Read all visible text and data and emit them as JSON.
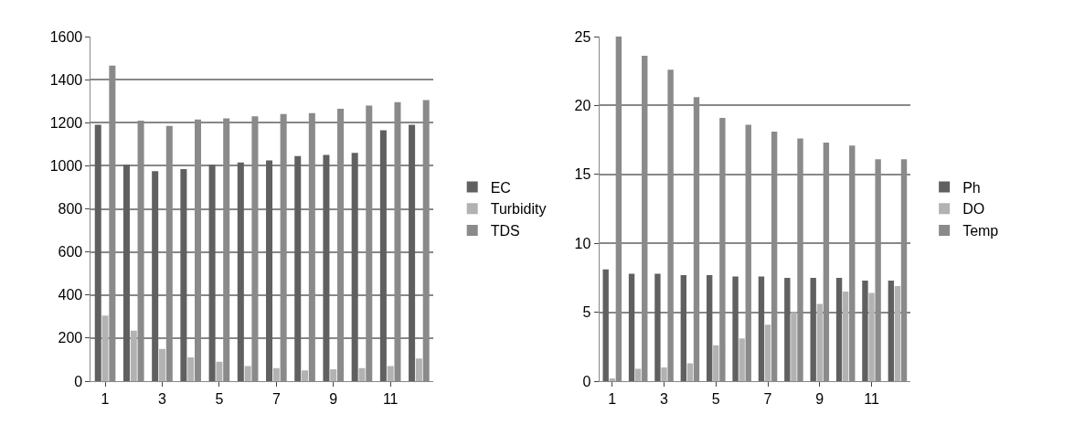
{
  "chart_data": [
    {
      "type": "bar",
      "categories": [
        "1",
        null,
        "3",
        null,
        "5",
        null,
        "7",
        null,
        "9",
        null,
        "11",
        null
      ],
      "ylim": [
        0,
        1600
      ],
      "yticks": [
        0,
        200,
        400,
        600,
        800,
        1000,
        1200,
        1400,
        1600
      ],
      "grid": "y",
      "legend": "right",
      "series": [
        {
          "name": "EC",
          "color": "#606060",
          "values": [
            1190,
            1005,
            975,
            985,
            1005,
            1015,
            1025,
            1045,
            1050,
            1060,
            1165,
            1190
          ]
        },
        {
          "name": "Turbidity",
          "color": "#b2b2b2",
          "values": [
            305,
            235,
            150,
            110,
            90,
            70,
            60,
            50,
            55,
            60,
            70,
            105
          ]
        },
        {
          "name": "TDS",
          "color": "#8a8a8a",
          "values": [
            1465,
            1210,
            1185,
            1215,
            1220,
            1230,
            1240,
            1245,
            1265,
            1280,
            1295,
            1305
          ]
        }
      ]
    },
    {
      "type": "bar",
      "categories": [
        "1",
        null,
        "3",
        null,
        "5",
        null,
        "7",
        null,
        "9",
        null,
        "11",
        null
      ],
      "ylim": [
        0,
        25
      ],
      "yticks": [
        0,
        5,
        10,
        15,
        20,
        25
      ],
      "grid": "y",
      "legend": "right",
      "series": [
        {
          "name": "Ph",
          "color": "#606060",
          "values": [
            8.1,
            7.8,
            7.8,
            7.7,
            7.7,
            7.6,
            7.6,
            7.5,
            7.5,
            7.5,
            7.3,
            7.3
          ]
        },
        {
          "name": "DO",
          "color": "#b2b2b2",
          "values": [
            0.2,
            0.9,
            1.0,
            1.3,
            2.6,
            3.1,
            4.1,
            5.0,
            5.6,
            6.5,
            6.4,
            6.9
          ]
        },
        {
          "name": "Temp",
          "color": "#8a8a8a",
          "values": [
            25,
            23.6,
            22.6,
            20.6,
            19.1,
            18.6,
            18.1,
            17.6,
            17.3,
            17.1,
            16.1,
            16.1
          ]
        }
      ]
    }
  ]
}
